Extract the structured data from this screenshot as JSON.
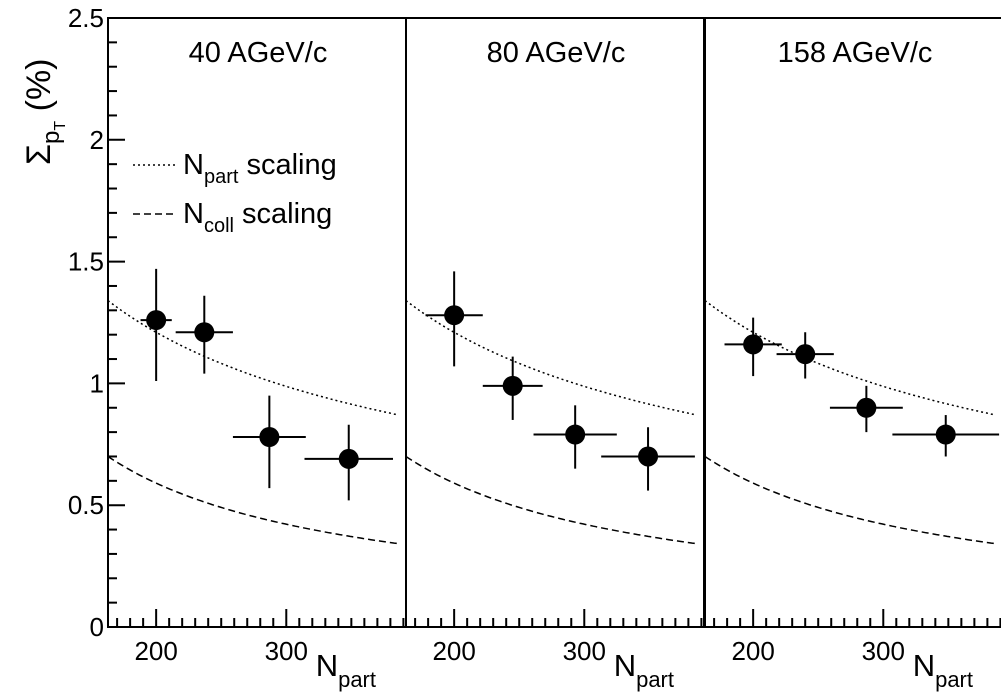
{
  "chart_data": {
    "type": "scatter",
    "ylabel": {
      "main": "Σ",
      "sub": "p",
      "subsub": "T",
      "unit": "(%)"
    },
    "xlabel": {
      "main": "N",
      "sub": "part"
    },
    "xlim": [
      163,
      392
    ],
    "ylim": [
      0,
      2.5
    ],
    "x_ticks": [
      200,
      300
    ],
    "y_ticks": [
      0,
      0.5,
      1,
      1.5,
      2,
      2.5
    ],
    "y_tick_labels": [
      "0",
      "0.5",
      "1",
      "1.5",
      "2",
      "2.5"
    ],
    "legend": {
      "placement": "top-left of first panel",
      "entries": [
        {
          "main": "N",
          "sub": "part",
          "rest": " scaling",
          "style": "dotted"
        },
        {
          "main": "N",
          "sub": "coll",
          "rest": " scaling",
          "style": "dashed"
        }
      ]
    },
    "curves": {
      "npart_scaling": {
        "ref_x": 163,
        "ref_y": 1.34,
        "power": -0.5
      },
      "ncoll_scaling": {
        "ref_x": 163,
        "ref_y": 0.7,
        "power": -0.83
      }
    },
    "panels": [
      {
        "title": "40 AGeV/c",
        "points": [
          {
            "x": 200,
            "y": 1.26,
            "xerr": 12,
            "yerr_up": 0.21,
            "yerr_down": 0.25
          },
          {
            "x": 237,
            "y": 1.21,
            "xerr": 22,
            "yerr_up": 0.15,
            "yerr_down": 0.17
          },
          {
            "x": 287,
            "y": 0.78,
            "xerr": 28,
            "yerr_up": 0.17,
            "yerr_down": 0.21
          },
          {
            "x": 348,
            "y": 0.69,
            "xerr": 34,
            "yerr_up": 0.14,
            "yerr_down": 0.17
          }
        ]
      },
      {
        "title": "80 AGeV/c",
        "points": [
          {
            "x": 200,
            "y": 1.28,
            "xerr": 22,
            "yerr_up": 0.18,
            "yerr_down": 0.21
          },
          {
            "x": 245,
            "y": 0.99,
            "xerr": 23,
            "yerr_up": 0.12,
            "yerr_down": 0.14
          },
          {
            "x": 293,
            "y": 0.79,
            "xerr": 32,
            "yerr_up": 0.12,
            "yerr_down": 0.14
          },
          {
            "x": 349,
            "y": 0.7,
            "xerr": 36,
            "yerr_up": 0.12,
            "yerr_down": 0.14
          }
        ]
      },
      {
        "title": "158 AGeV/c",
        "points": [
          {
            "x": 200,
            "y": 1.16,
            "xerr": 22,
            "yerr_up": 0.11,
            "yerr_down": 0.13
          },
          {
            "x": 240,
            "y": 1.12,
            "xerr": 22,
            "yerr_up": 0.09,
            "yerr_down": 0.1
          },
          {
            "x": 287,
            "y": 0.9,
            "xerr": 28,
            "yerr_up": 0.09,
            "yerr_down": 0.1
          },
          {
            "x": 348,
            "y": 0.79,
            "xerr": 41,
            "yerr_up": 0.08,
            "yerr_down": 0.09
          }
        ]
      }
    ]
  }
}
